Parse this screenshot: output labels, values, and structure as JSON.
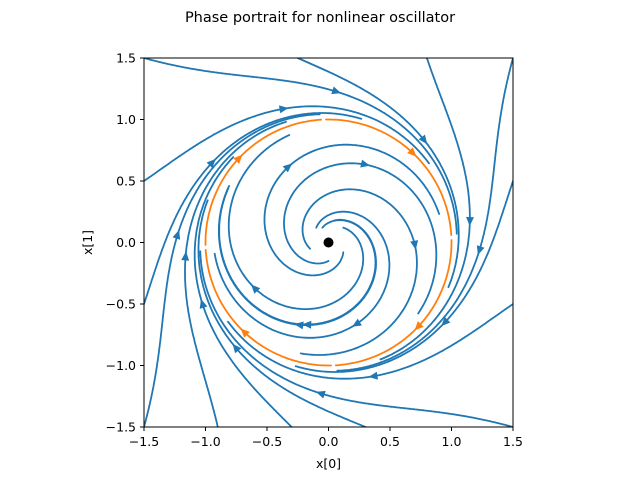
{
  "chart_data": {
    "type": "streamplot",
    "title": "Phase portrait for nonlinear oscillator",
    "xlabel": "x[0]",
    "ylabel": "x[1]",
    "xlim": [
      -1.5,
      1.5
    ],
    "ylim": [
      -1.5,
      1.5
    ],
    "xticks": [
      -1.5,
      -1.0,
      -0.5,
      0.0,
      0.5,
      1.0,
      1.5
    ],
    "yticks": [
      -1.5,
      -1.0,
      -0.5,
      0.0,
      0.5,
      1.0,
      1.5
    ],
    "xtick_labels": [
      "−1.5",
      "−1.0",
      "−0.5",
      "0.0",
      "0.5",
      "1.0",
      "1.5"
    ],
    "ytick_labels": [
      "−1.5",
      "−1.0",
      "−0.5",
      "0.0",
      "0.5",
      "1.0",
      "1.5"
    ],
    "grid": false,
    "equilibrium": {
      "x": 0.0,
      "y": 0.0
    },
    "limit_cycle": {
      "center": [
        0,
        0
      ],
      "radius": 1.0,
      "direction": "clockwise"
    },
    "streamline_color": "#1f77b4",
    "limit_cycle_color": "#ff7f0e",
    "equilibrium_color": "#000000",
    "inward_streamlines": [
      {
        "start": [
          -1.5,
          1.5
        ],
        "end": [
          -0.3,
          1.12
        ]
      },
      {
        "start": [
          -1.5,
          0.5
        ],
        "end": [
          -0.3,
          0.95
        ]
      },
      {
        "start": [
          -0.25,
          1.5
        ],
        "end": [
          0.45,
          1.1
        ]
      },
      {
        "start": [
          0.8,
          1.5
        ],
        "end": [
          0.82,
          0.4
        ]
      },
      {
        "start": [
          1.5,
          1.5
        ],
        "end": [
          1.05,
          0.15
        ]
      },
      {
        "start": [
          1.5,
          0.5
        ],
        "end": [
          1.0,
          -0.55
        ]
      },
      {
        "start": [
          1.5,
          -0.5
        ],
        "end": [
          0.55,
          -0.9
        ]
      },
      {
        "start": [
          0.3,
          -1.5
        ],
        "end": [
          -0.45,
          -1.05
        ]
      },
      {
        "start": [
          1.5,
          -1.5
        ],
        "end": [
          -0.1,
          -1.08
        ]
      },
      {
        "start": [
          -0.3,
          -1.5
        ],
        "end": [
          -0.95,
          -0.55
        ]
      },
      {
        "start": [
          -0.9,
          -1.5
        ],
        "end": [
          -1.05,
          -0.3
        ]
      },
      {
        "start": [
          -1.5,
          -1.5
        ],
        "end": [
          -1.05,
          0.3
        ]
      },
      {
        "start": [
          -1.5,
          -0.5
        ],
        "end": [
          -1.0,
          0.45
        ]
      }
    ],
    "outward_streamlines": [
      {
        "start": [
          -0.05,
          0.12
        ],
        "end": [
          0.9,
          0.3
        ]
      },
      {
        "start": [
          0.12,
          0.12
        ],
        "end": [
          0.9,
          -0.5
        ]
      },
      {
        "start": [
          0.12,
          -0.08
        ],
        "end": [
          0.25,
          -0.9
        ]
      },
      {
        "start": [
          0.0,
          -0.15
        ],
        "end": [
          -0.75,
          -0.7
        ]
      },
      {
        "start": [
          -0.15,
          -0.05
        ],
        "end": [
          -0.9,
          0.1
        ]
      },
      {
        "start": [
          -0.1,
          0.12
        ],
        "end": [
          -0.45,
          0.75
        ]
      },
      {
        "start": [
          0.05,
          0.18
        ],
        "end": [
          0.6,
          0.75
        ]
      }
    ]
  }
}
